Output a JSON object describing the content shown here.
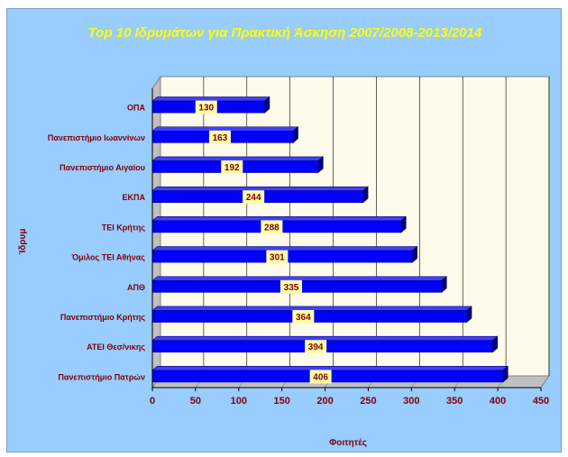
{
  "chart_data": {
    "type": "bar",
    "orientation": "horizontal",
    "title": "Top 10 Ιδρυμάτων για Πρακτική Άσκηση 2007/2008-2013/2014",
    "xlabel": "Φοιτητές",
    "ylabel": "Ίδρυμ",
    "categories": [
      "ΟΠΑ",
      "Πανεπιστήμιο Ιωαννίνων",
      "Πανεπιστήμιο Αιγαίου",
      "ΕΚΠΑ",
      "ΤΕΙ Κρήτης",
      "Όμιλος ΤΕΙ Αθήνας",
      "ΑΠΘ",
      "Πανεπιστήμιο Κρήτης",
      "ΑΤΕΙ Θεσ/νικης",
      "Πανεπιστήμιο Πατρών"
    ],
    "values": [
      130,
      163,
      192,
      244,
      288,
      301,
      335,
      364,
      394,
      406
    ],
    "xlim": [
      0,
      450
    ],
    "xticks": [
      "0",
      "50",
      "100",
      "150",
      "200",
      "250",
      "300",
      "350",
      "400",
      "450"
    ],
    "grid": true,
    "legend": "none",
    "colors": {
      "background": "#99ccff",
      "plot_area": "#fffbea",
      "bar_front": "#0000ff",
      "bar_top": "#3f3fff",
      "bar_side": "#000080",
      "title": "#ffff00",
      "labels": "#800000",
      "value_box": "#ffffa8"
    }
  }
}
